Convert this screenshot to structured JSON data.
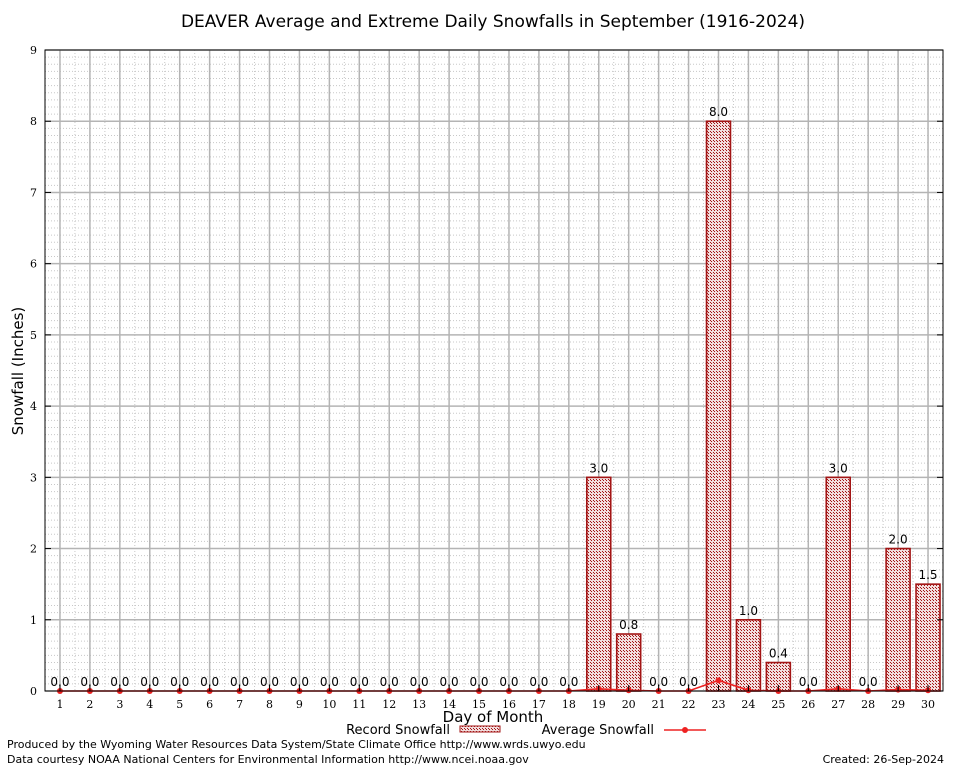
{
  "chart_data": {
    "type": "bar",
    "title": "DEAVER Average and Extreme Daily Snowfalls in September (1916-2024)",
    "xlabel": "Day of Month",
    "ylabel": "Snowfall (Inches)",
    "ylim": [
      0,
      9
    ],
    "yticks": [
      "0",
      "1",
      "2",
      "3",
      "4",
      "5",
      "6",
      "7",
      "8",
      "9"
    ],
    "grid": true,
    "legend_position": "bottom",
    "categories": [
      "1",
      "2",
      "3",
      "4",
      "5",
      "6",
      "7",
      "8",
      "9",
      "10",
      "11",
      "12",
      "13",
      "14",
      "15",
      "16",
      "17",
      "18",
      "19",
      "20",
      "21",
      "22",
      "23",
      "24",
      "25",
      "26",
      "27",
      "28",
      "29",
      "30"
    ],
    "series": [
      {
        "name": "Record Snowfall",
        "type": "bar",
        "color": "#cc0000",
        "values": [
          0,
          0,
          0,
          0,
          0,
          0,
          0,
          0,
          0,
          0,
          0,
          0,
          0,
          0,
          0,
          0,
          0,
          0,
          3.0,
          0.8,
          0,
          0,
          8.0,
          1.0,
          0.4,
          0,
          3.0,
          0,
          2.0,
          1.5
        ],
        "labels": [
          "0.0",
          "0.0",
          "0.0",
          "0.0",
          "0.0",
          "0.0",
          "0.0",
          "0.0",
          "0.0",
          "0.0",
          "0.0",
          "0.0",
          "0.0",
          "0.0",
          "0.0",
          "0.0",
          "0.0",
          "0.0",
          "3.0",
          "0.8",
          "0.0",
          "0.0",
          "8.0",
          "1.0",
          "0.4",
          "0.0",
          "3.0",
          "0.0",
          "2.0",
          "1.5"
        ]
      },
      {
        "name": "Average Snowfall",
        "type": "line",
        "color": "#ee2222",
        "values": [
          0,
          0,
          0,
          0,
          0,
          0,
          0,
          0,
          0,
          0,
          0,
          0,
          0,
          0,
          0,
          0,
          0,
          0,
          0.03,
          0.01,
          0,
          0,
          0.15,
          0.01,
          0,
          0,
          0.03,
          0,
          0.02,
          0.01
        ]
      }
    ]
  },
  "footer": {
    "produced_by": "Produced by the Wyoming Water Resources Data System/State Climate Office http://www.wrds.uwyo.edu",
    "data_courtesy": "Data courtesy NOAA National Centers for Environmental Information http://www.ncei.noaa.gov",
    "created": "Created:  26-Sep-2024"
  }
}
